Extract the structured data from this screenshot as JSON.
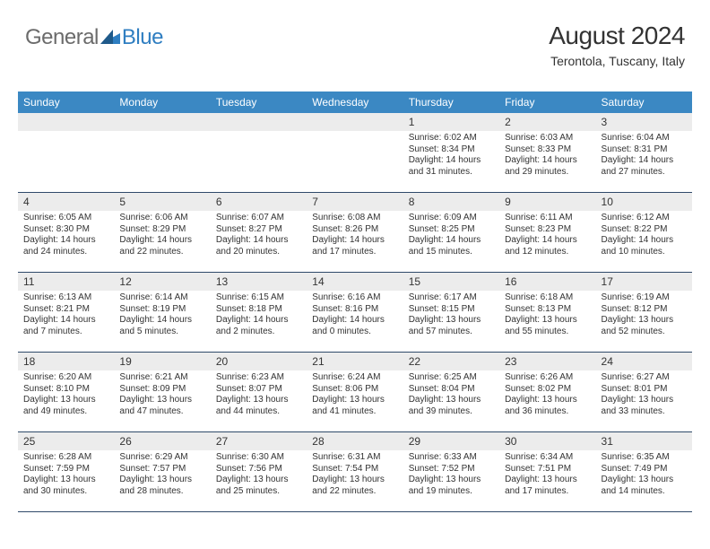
{
  "brand": {
    "name_part1": "General",
    "name_part2": "Blue",
    "logo_color": "#2f7ec1",
    "logo_text_gray": "#6b6b6b"
  },
  "header": {
    "title": "August 2024",
    "location": "Terontola, Tuscany, Italy"
  },
  "colors": {
    "header_bar": "#3b88c3",
    "header_bar_text": "#ffffff",
    "daynum_bg": "#ececec",
    "week_divider": "#2f4a6a",
    "body_text": "#333333",
    "page_bg": "#ffffff"
  },
  "fonts": {
    "title_size_pt": 21,
    "location_size_pt": 10.5,
    "dow_size_pt": 9,
    "daynum_size_pt": 9,
    "body_size_pt": 7.5
  },
  "days_of_week": [
    "Sunday",
    "Monday",
    "Tuesday",
    "Wednesday",
    "Thursday",
    "Friday",
    "Saturday"
  ],
  "calendar": {
    "weeks": [
      [
        {
          "n": "",
          "sr": "",
          "ss": "",
          "dl": ""
        },
        {
          "n": "",
          "sr": "",
          "ss": "",
          "dl": ""
        },
        {
          "n": "",
          "sr": "",
          "ss": "",
          "dl": ""
        },
        {
          "n": "",
          "sr": "",
          "ss": "",
          "dl": ""
        },
        {
          "n": "1",
          "sr": "Sunrise: 6:02 AM",
          "ss": "Sunset: 8:34 PM",
          "dl": "Daylight: 14 hours and 31 minutes."
        },
        {
          "n": "2",
          "sr": "Sunrise: 6:03 AM",
          "ss": "Sunset: 8:33 PM",
          "dl": "Daylight: 14 hours and 29 minutes."
        },
        {
          "n": "3",
          "sr": "Sunrise: 6:04 AM",
          "ss": "Sunset: 8:31 PM",
          "dl": "Daylight: 14 hours and 27 minutes."
        }
      ],
      [
        {
          "n": "4",
          "sr": "Sunrise: 6:05 AM",
          "ss": "Sunset: 8:30 PM",
          "dl": "Daylight: 14 hours and 24 minutes."
        },
        {
          "n": "5",
          "sr": "Sunrise: 6:06 AM",
          "ss": "Sunset: 8:29 PM",
          "dl": "Daylight: 14 hours and 22 minutes."
        },
        {
          "n": "6",
          "sr": "Sunrise: 6:07 AM",
          "ss": "Sunset: 8:27 PM",
          "dl": "Daylight: 14 hours and 20 minutes."
        },
        {
          "n": "7",
          "sr": "Sunrise: 6:08 AM",
          "ss": "Sunset: 8:26 PM",
          "dl": "Daylight: 14 hours and 17 minutes."
        },
        {
          "n": "8",
          "sr": "Sunrise: 6:09 AM",
          "ss": "Sunset: 8:25 PM",
          "dl": "Daylight: 14 hours and 15 minutes."
        },
        {
          "n": "9",
          "sr": "Sunrise: 6:11 AM",
          "ss": "Sunset: 8:23 PM",
          "dl": "Daylight: 14 hours and 12 minutes."
        },
        {
          "n": "10",
          "sr": "Sunrise: 6:12 AM",
          "ss": "Sunset: 8:22 PM",
          "dl": "Daylight: 14 hours and 10 minutes."
        }
      ],
      [
        {
          "n": "11",
          "sr": "Sunrise: 6:13 AM",
          "ss": "Sunset: 8:21 PM",
          "dl": "Daylight: 14 hours and 7 minutes."
        },
        {
          "n": "12",
          "sr": "Sunrise: 6:14 AM",
          "ss": "Sunset: 8:19 PM",
          "dl": "Daylight: 14 hours and 5 minutes."
        },
        {
          "n": "13",
          "sr": "Sunrise: 6:15 AM",
          "ss": "Sunset: 8:18 PM",
          "dl": "Daylight: 14 hours and 2 minutes."
        },
        {
          "n": "14",
          "sr": "Sunrise: 6:16 AM",
          "ss": "Sunset: 8:16 PM",
          "dl": "Daylight: 14 hours and 0 minutes."
        },
        {
          "n": "15",
          "sr": "Sunrise: 6:17 AM",
          "ss": "Sunset: 8:15 PM",
          "dl": "Daylight: 13 hours and 57 minutes."
        },
        {
          "n": "16",
          "sr": "Sunrise: 6:18 AM",
          "ss": "Sunset: 8:13 PM",
          "dl": "Daylight: 13 hours and 55 minutes."
        },
        {
          "n": "17",
          "sr": "Sunrise: 6:19 AM",
          "ss": "Sunset: 8:12 PM",
          "dl": "Daylight: 13 hours and 52 minutes."
        }
      ],
      [
        {
          "n": "18",
          "sr": "Sunrise: 6:20 AM",
          "ss": "Sunset: 8:10 PM",
          "dl": "Daylight: 13 hours and 49 minutes."
        },
        {
          "n": "19",
          "sr": "Sunrise: 6:21 AM",
          "ss": "Sunset: 8:09 PM",
          "dl": "Daylight: 13 hours and 47 minutes."
        },
        {
          "n": "20",
          "sr": "Sunrise: 6:23 AM",
          "ss": "Sunset: 8:07 PM",
          "dl": "Daylight: 13 hours and 44 minutes."
        },
        {
          "n": "21",
          "sr": "Sunrise: 6:24 AM",
          "ss": "Sunset: 8:06 PM",
          "dl": "Daylight: 13 hours and 41 minutes."
        },
        {
          "n": "22",
          "sr": "Sunrise: 6:25 AM",
          "ss": "Sunset: 8:04 PM",
          "dl": "Daylight: 13 hours and 39 minutes."
        },
        {
          "n": "23",
          "sr": "Sunrise: 6:26 AM",
          "ss": "Sunset: 8:02 PM",
          "dl": "Daylight: 13 hours and 36 minutes."
        },
        {
          "n": "24",
          "sr": "Sunrise: 6:27 AM",
          "ss": "Sunset: 8:01 PM",
          "dl": "Daylight: 13 hours and 33 minutes."
        }
      ],
      [
        {
          "n": "25",
          "sr": "Sunrise: 6:28 AM",
          "ss": "Sunset: 7:59 PM",
          "dl": "Daylight: 13 hours and 30 minutes."
        },
        {
          "n": "26",
          "sr": "Sunrise: 6:29 AM",
          "ss": "Sunset: 7:57 PM",
          "dl": "Daylight: 13 hours and 28 minutes."
        },
        {
          "n": "27",
          "sr": "Sunrise: 6:30 AM",
          "ss": "Sunset: 7:56 PM",
          "dl": "Daylight: 13 hours and 25 minutes."
        },
        {
          "n": "28",
          "sr": "Sunrise: 6:31 AM",
          "ss": "Sunset: 7:54 PM",
          "dl": "Daylight: 13 hours and 22 minutes."
        },
        {
          "n": "29",
          "sr": "Sunrise: 6:33 AM",
          "ss": "Sunset: 7:52 PM",
          "dl": "Daylight: 13 hours and 19 minutes."
        },
        {
          "n": "30",
          "sr": "Sunrise: 6:34 AM",
          "ss": "Sunset: 7:51 PM",
          "dl": "Daylight: 13 hours and 17 minutes."
        },
        {
          "n": "31",
          "sr": "Sunrise: 6:35 AM",
          "ss": "Sunset: 7:49 PM",
          "dl": "Daylight: 13 hours and 14 minutes."
        }
      ]
    ]
  }
}
